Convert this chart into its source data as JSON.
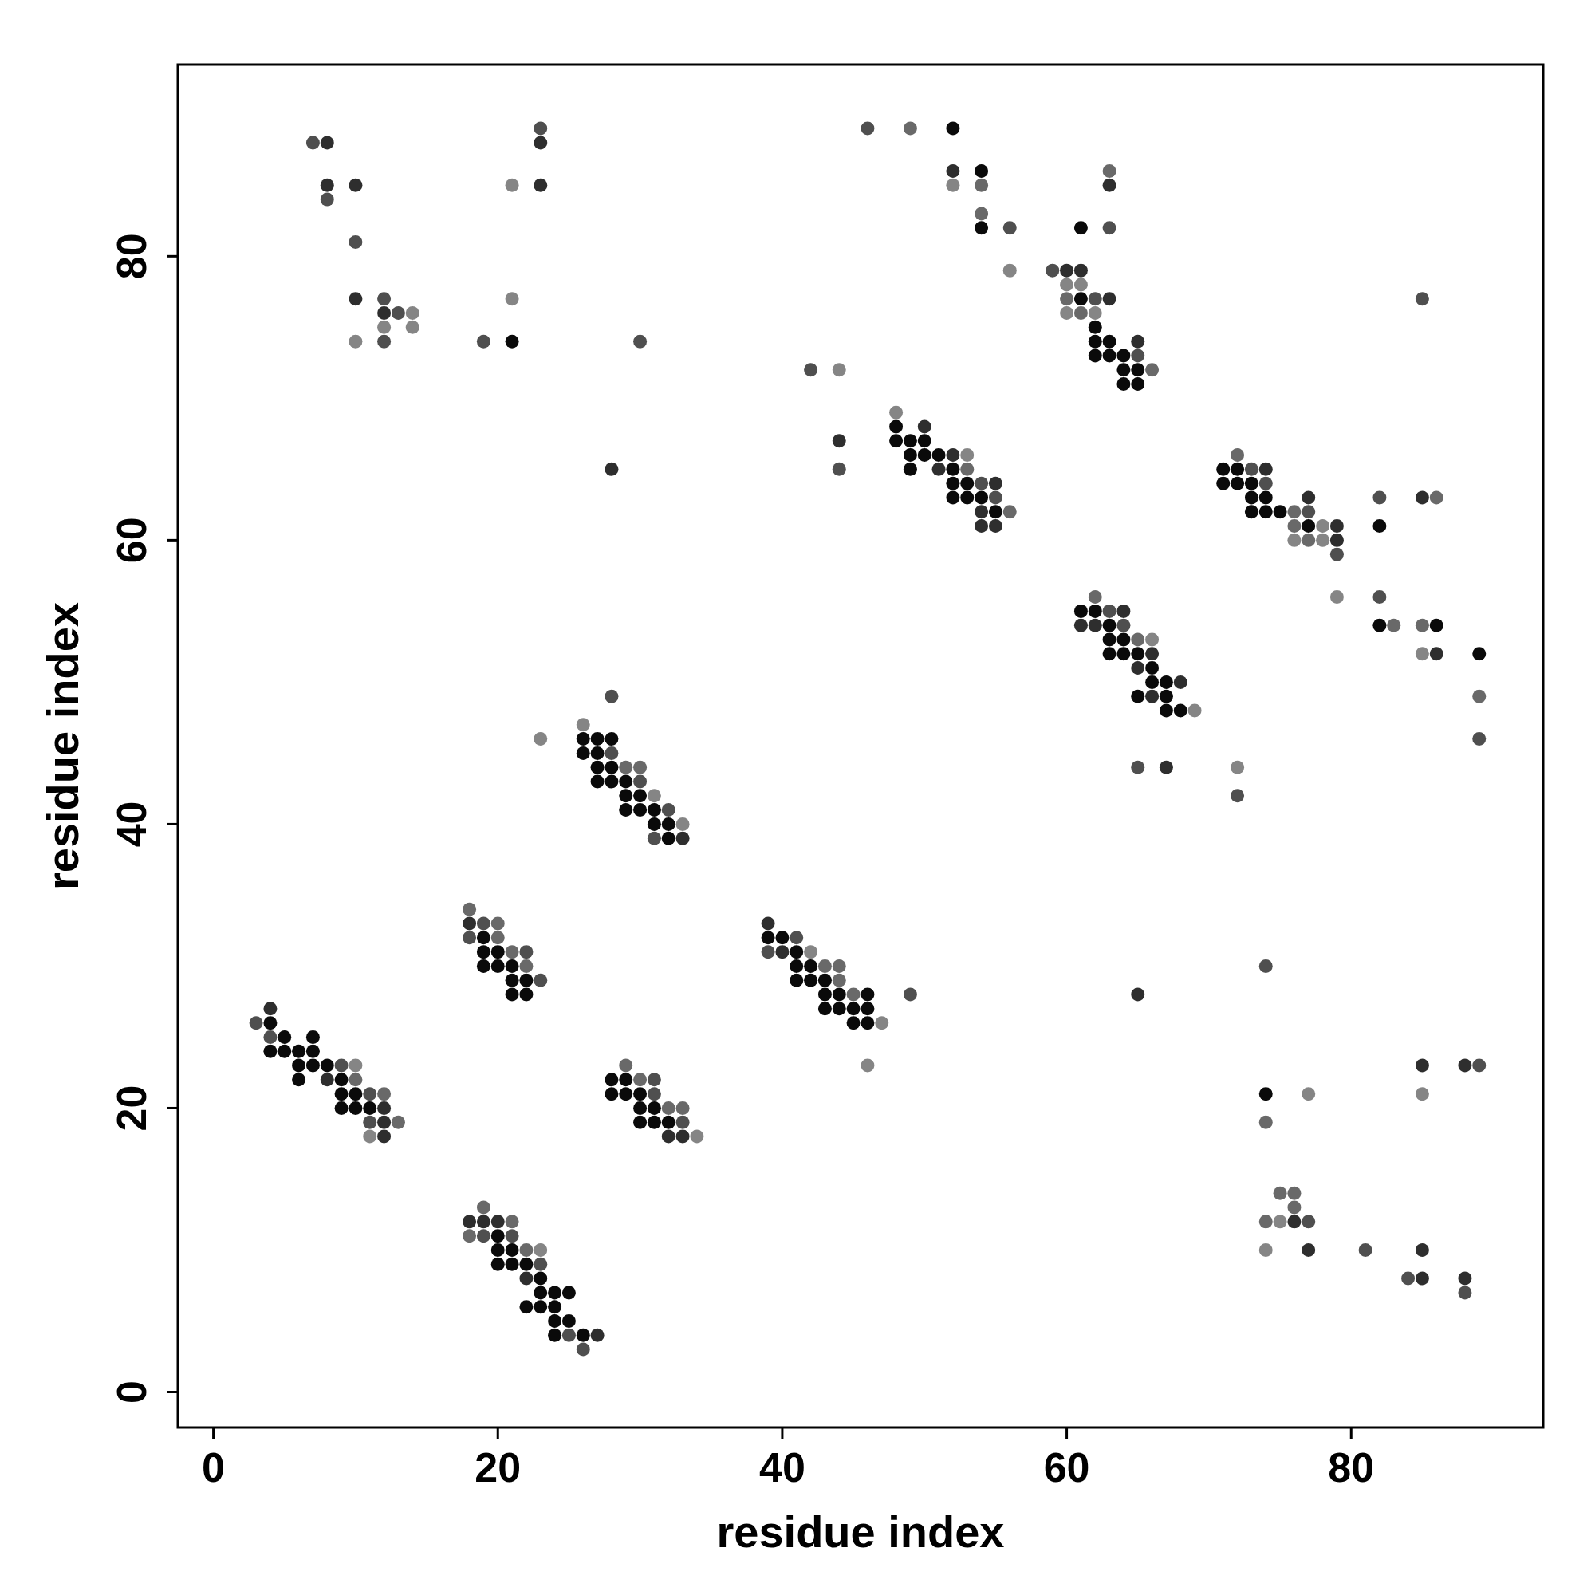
{
  "chart_data": {
    "type": "scatter",
    "xlabel": "residue index",
    "ylabel": "residue index",
    "xlim": [
      -2.5,
      93.5
    ],
    "ylim": [
      -2.5,
      93.5
    ],
    "xticks": [
      0,
      20,
      40,
      60,
      80
    ],
    "yticks": [
      0,
      20,
      40,
      60,
      80
    ],
    "marker": "circle",
    "series": [
      {
        "color": "#0a0a0a",
        "x": [
          21,
          26,
          27,
          28,
          26,
          27,
          27,
          28,
          27,
          28,
          29,
          29,
          30,
          29,
          30,
          31,
          31,
          32,
          32,
          19,
          19,
          20,
          19,
          20,
          21,
          21,
          22,
          21,
          22,
          4,
          5,
          7,
          4,
          5,
          6,
          7,
          6,
          7,
          8,
          6,
          9,
          9,
          10,
          9,
          10,
          11,
          28,
          29,
          28,
          29,
          30,
          30,
          31,
          30,
          31,
          32,
          20,
          20,
          21,
          20,
          21,
          22,
          23,
          23,
          24,
          25,
          22,
          23,
          24,
          24,
          25,
          24,
          26,
          52,
          54,
          54,
          61,
          61,
          62,
          62,
          63,
          62,
          63,
          64,
          64,
          65,
          64,
          65,
          48,
          48,
          49,
          50,
          49,
          50,
          51,
          49,
          52,
          52,
          53,
          52,
          53,
          54,
          55,
          39,
          40,
          41,
          41,
          42,
          41,
          42,
          43,
          43,
          44,
          46,
          43,
          44,
          45,
          46,
          45,
          46,
          61,
          62,
          63,
          63,
          64,
          63,
          64,
          65,
          66,
          66,
          67,
          65,
          67,
          67,
          68,
          71,
          72,
          71,
          72,
          73,
          73,
          74,
          73,
          74,
          75,
          77,
          82,
          82,
          86,
          89,
          74
        ],
        "values": [
          74,
          46,
          46,
          46,
          45,
          45,
          44,
          44,
          43,
          43,
          43,
          42,
          42,
          41,
          41,
          41,
          40,
          40,
          39,
          32,
          31,
          31,
          30,
          30,
          30,
          29,
          29,
          28,
          28,
          26,
          25,
          25,
          24,
          24,
          24,
          24,
          23,
          23,
          23,
          22,
          22,
          21,
          21,
          20,
          20,
          20,
          22,
          22,
          21,
          21,
          21,
          20,
          20,
          19,
          19,
          19,
          11,
          10,
          10,
          9,
          9,
          9,
          8,
          7,
          7,
          7,
          6,
          6,
          6,
          5,
          5,
          4,
          4,
          89,
          86,
          82,
          82,
          77,
          75,
          74,
          74,
          73,
          73,
          73,
          72,
          72,
          71,
          71,
          68,
          67,
          67,
          67,
          66,
          66,
          66,
          65,
          65,
          64,
          64,
          63,
          63,
          63,
          62,
          32,
          32,
          31,
          30,
          30,
          29,
          29,
          29,
          28,
          28,
          28,
          27,
          27,
          27,
          27,
          26,
          26,
          55,
          55,
          54,
          53,
          53,
          52,
          52,
          52,
          51,
          50,
          50,
          49,
          49,
          48,
          48,
          65,
          65,
          64,
          64,
          64,
          63,
          63,
          62,
          62,
          62,
          61,
          61,
          54,
          54,
          52,
          21
        ]
      },
      {
        "color": "#2e2e2e",
        "x": [
          8,
          8,
          10,
          23,
          23,
          10,
          12,
          28,
          33,
          18,
          4,
          8,
          12,
          12,
          12,
          33,
          32,
          18,
          19,
          20,
          22,
          27,
          52,
          60,
          61,
          63,
          63,
          65,
          50,
          51,
          52,
          55,
          54,
          54,
          55,
          44,
          39,
          40,
          61,
          62,
          64,
          66,
          65,
          68,
          66,
          74,
          77,
          85,
          79,
          79,
          86,
          67,
          65,
          85,
          88,
          76,
          77,
          85,
          85,
          88
        ],
        "values": [
          88,
          85,
          85,
          85,
          88,
          77,
          76,
          65,
          39,
          33,
          27,
          22,
          20,
          19,
          18,
          18,
          18,
          12,
          12,
          12,
          8,
          4,
          86,
          79,
          79,
          77,
          85,
          74,
          68,
          65,
          66,
          64,
          62,
          61,
          61,
          67,
          33,
          31,
          54,
          54,
          55,
          52,
          51,
          50,
          49,
          65,
          63,
          63,
          61,
          60,
          52,
          44,
          28,
          23,
          23,
          12,
          10,
          10,
          8,
          8
        ]
      },
      {
        "color": "#4f4f4f",
        "x": [
          7,
          8,
          10,
          12,
          13,
          12,
          19,
          30,
          23,
          28,
          28,
          30,
          31,
          32,
          18,
          19,
          22,
          23,
          3,
          4,
          9,
          11,
          11,
          31,
          31,
          33,
          19,
          21,
          23,
          25,
          26,
          46,
          56,
          59,
          62,
          63,
          65,
          85,
          42,
          44,
          54,
          55,
          41,
          39,
          49,
          63,
          64,
          73,
          74,
          77,
          82,
          79,
          82,
          89,
          65,
          72,
          89,
          74,
          77,
          81,
          84,
          88
        ],
        "values": [
          88,
          84,
          81,
          77,
          76,
          74,
          74,
          74,
          89,
          49,
          45,
          43,
          39,
          41,
          32,
          33,
          31,
          29,
          26,
          25,
          23,
          21,
          19,
          22,
          21,
          19,
          11,
          11,
          9,
          4,
          3,
          89,
          82,
          79,
          77,
          82,
          73,
          77,
          72,
          65,
          64,
          63,
          32,
          31,
          28,
          55,
          54,
          65,
          64,
          62,
          63,
          59,
          56,
          46,
          44,
          42,
          23,
          30,
          12,
          10,
          8,
          7
        ]
      },
      {
        "color": "#696969",
        "x": [
          20,
          20,
          21,
          22,
          18,
          29,
          30,
          12,
          10,
          13,
          29,
          30,
          32,
          33,
          19,
          21,
          18,
          22,
          49,
          54,
          54,
          60,
          61,
          63,
          53,
          66,
          62,
          56,
          43,
          44,
          44,
          45,
          65,
          72,
          76,
          76,
          77,
          86,
          83,
          85,
          89,
          74,
          75,
          76,
          76,
          74
        ],
        "values": [
          33,
          32,
          31,
          30,
          34,
          44,
          44,
          21,
          22,
          19,
          23,
          22,
          20,
          20,
          13,
          12,
          11,
          10,
          89,
          85,
          83,
          77,
          76,
          86,
          65,
          72,
          56,
          62,
          30,
          30,
          29,
          28,
          53,
          66,
          62,
          61,
          60,
          63,
          54,
          54,
          49,
          19,
          14,
          14,
          13,
          12
        ]
      },
      {
        "color": "#858585",
        "x": [
          21,
          14,
          12,
          14,
          10,
          21,
          26,
          23,
          31,
          33,
          10,
          11,
          34,
          23,
          52,
          56,
          60,
          61,
          60,
          62,
          44,
          48,
          53,
          42,
          47,
          46,
          66,
          69,
          72,
          78,
          76,
          78,
          79,
          85,
          77,
          85,
          75,
          74
        ],
        "values": [
          85,
          76,
          75,
          75,
          74,
          77,
          47,
          46,
          42,
          40,
          23,
          18,
          18,
          10,
          85,
          79,
          78,
          78,
          76,
          76,
          72,
          69,
          66,
          31,
          26,
          23,
          53,
          48,
          44,
          61,
          60,
          60,
          56,
          52,
          21,
          21,
          12,
          10
        ]
      }
    ]
  }
}
